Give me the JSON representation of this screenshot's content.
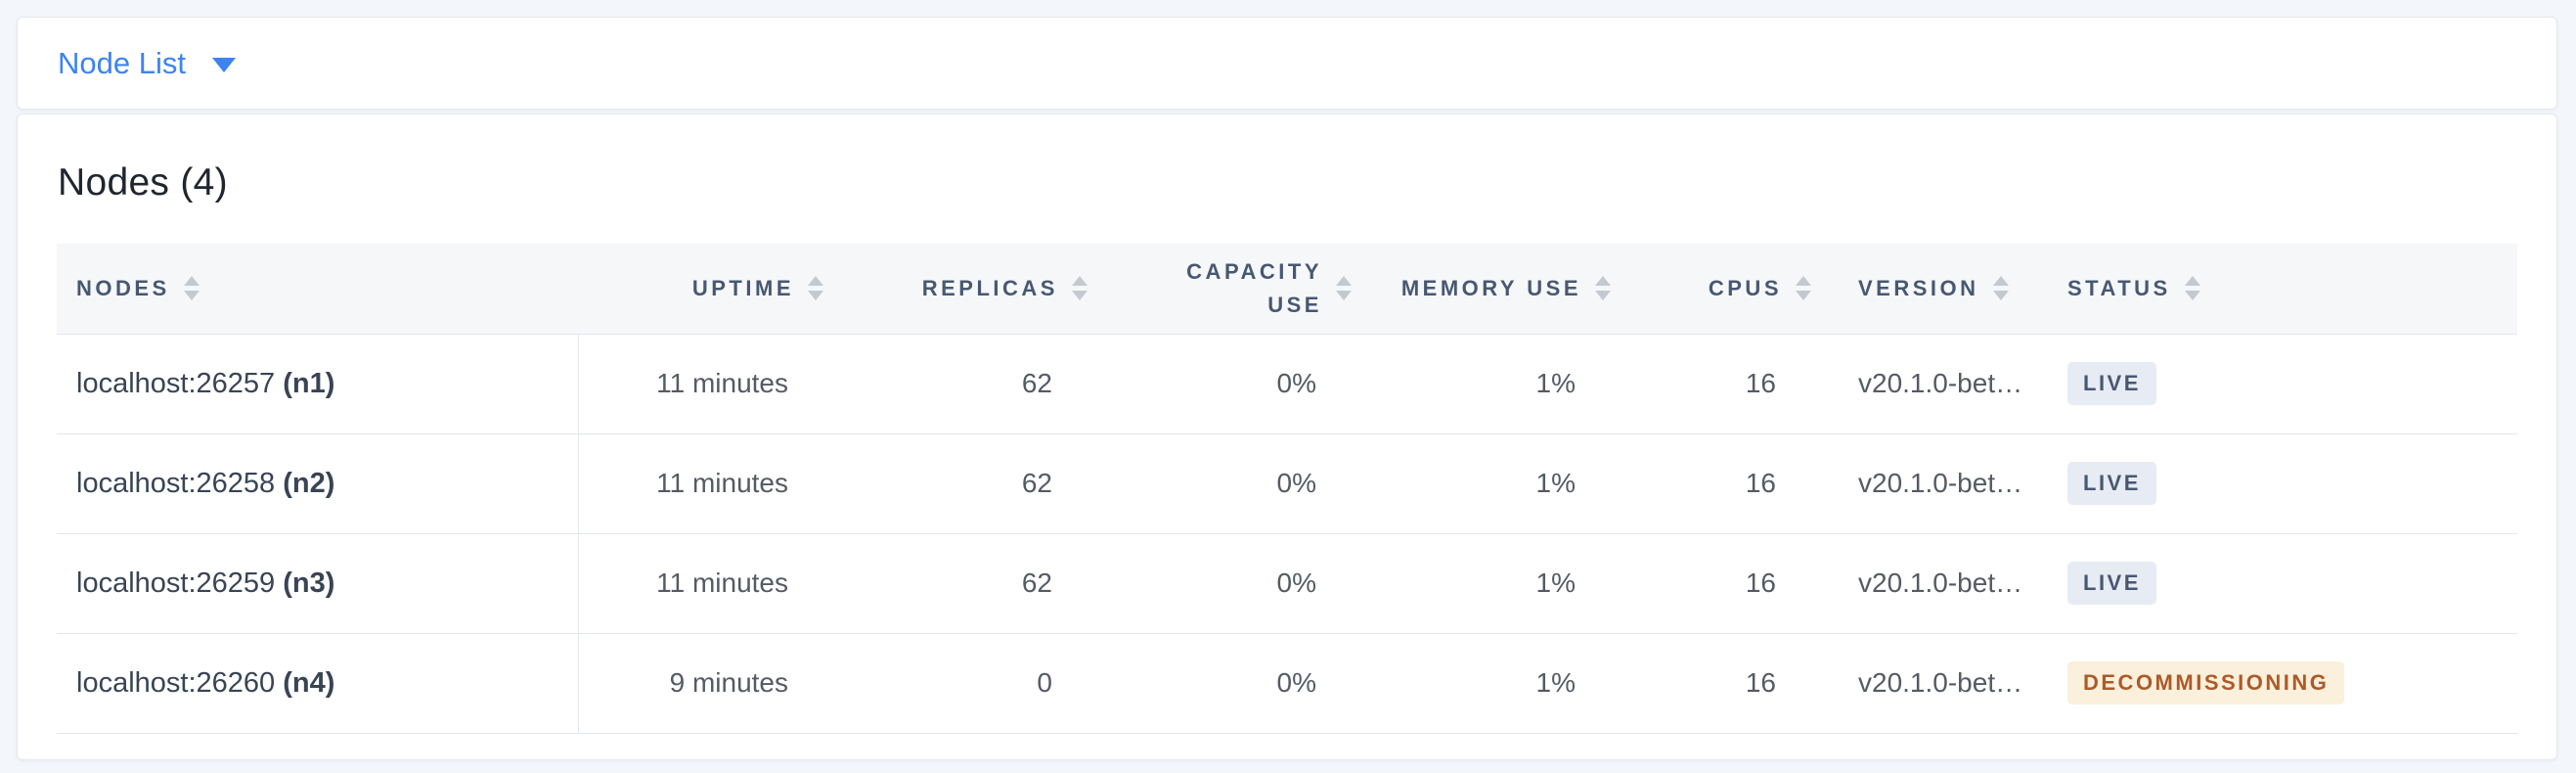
{
  "selector": {
    "label": "Node List"
  },
  "panel": {
    "title": "Nodes (4)"
  },
  "table": {
    "columns": [
      {
        "key": "nodes",
        "label": "NODES",
        "align": "left"
      },
      {
        "key": "uptime",
        "label": "UPTIME",
        "align": "right"
      },
      {
        "key": "replicas",
        "label": "REPLICAS",
        "align": "right"
      },
      {
        "key": "capacity_use",
        "label": "CAPACITY USE",
        "align": "right"
      },
      {
        "key": "memory_use",
        "label": "MEMORY USE",
        "align": "right"
      },
      {
        "key": "cpus",
        "label": "CPUS",
        "align": "right"
      },
      {
        "key": "version",
        "label": "VERSION",
        "align": "left"
      },
      {
        "key": "status",
        "label": "STATUS",
        "align": "left"
      }
    ],
    "rows": [
      {
        "address": "localhost:26257",
        "node_id": "(n1)",
        "uptime": "11 minutes",
        "replicas": "62",
        "capacity_use": "0%",
        "memory_use": "1%",
        "cpus": "16",
        "version": "v20.1.0-bet…",
        "status": "LIVE",
        "status_type": "live"
      },
      {
        "address": "localhost:26258",
        "node_id": "(n2)",
        "uptime": "11 minutes",
        "replicas": "62",
        "capacity_use": "0%",
        "memory_use": "1%",
        "cpus": "16",
        "version": "v20.1.0-bet…",
        "status": "LIVE",
        "status_type": "live"
      },
      {
        "address": "localhost:26259",
        "node_id": "(n3)",
        "uptime": "11 minutes",
        "replicas": "62",
        "capacity_use": "0%",
        "memory_use": "1%",
        "cpus": "16",
        "version": "v20.1.0-bet…",
        "status": "LIVE",
        "status_type": "live"
      },
      {
        "address": "localhost:26260",
        "node_id": "(n4)",
        "uptime": "9 minutes",
        "replicas": "0",
        "capacity_use": "0%",
        "memory_use": "1%",
        "cpus": "16",
        "version": "v20.1.0-bet…",
        "status": "DECOMMISSIONING",
        "status_type": "decommissioning"
      }
    ]
  },
  "colors": {
    "accent_blue": "#3b84f2",
    "header_text": "#475872",
    "badge_live_bg": "#e7ebf3",
    "badge_live_text": "#475872",
    "badge_decommissioning_bg": "#fbf0dc",
    "badge_decommissioning_text": "#ad5a28"
  }
}
